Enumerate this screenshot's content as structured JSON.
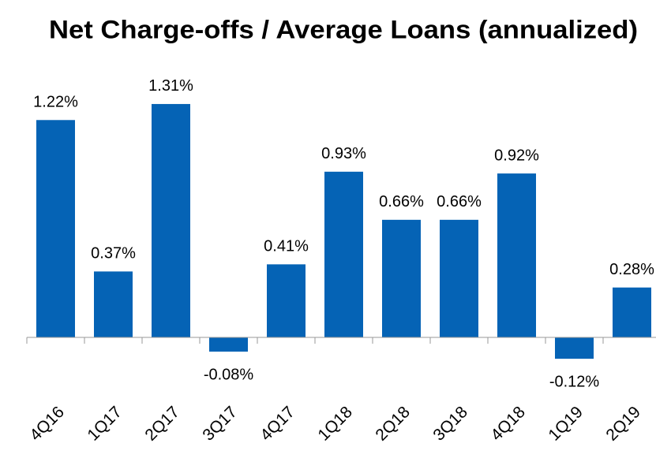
{
  "chart_data": {
    "type": "bar",
    "title": "Net Charge-offs / Average Loans (annualized)",
    "categories": [
      "4Q16",
      "1Q17",
      "2Q17",
      "3Q17",
      "4Q17",
      "1Q18",
      "2Q18",
      "3Q18",
      "4Q18",
      "1Q19",
      "2Q19"
    ],
    "values": [
      1.22,
      0.37,
      1.31,
      -0.08,
      0.41,
      0.93,
      0.66,
      0.66,
      0.92,
      -0.12,
      0.28
    ],
    "value_labels": [
      "1.22%",
      "0.37%",
      "1.31%",
      "-0.08%",
      "0.41%",
      "0.93%",
      "0.66%",
      "0.66%",
      "0.92%",
      "-0.12%",
      "0.28%"
    ],
    "color": "#0563b5"
  }
}
